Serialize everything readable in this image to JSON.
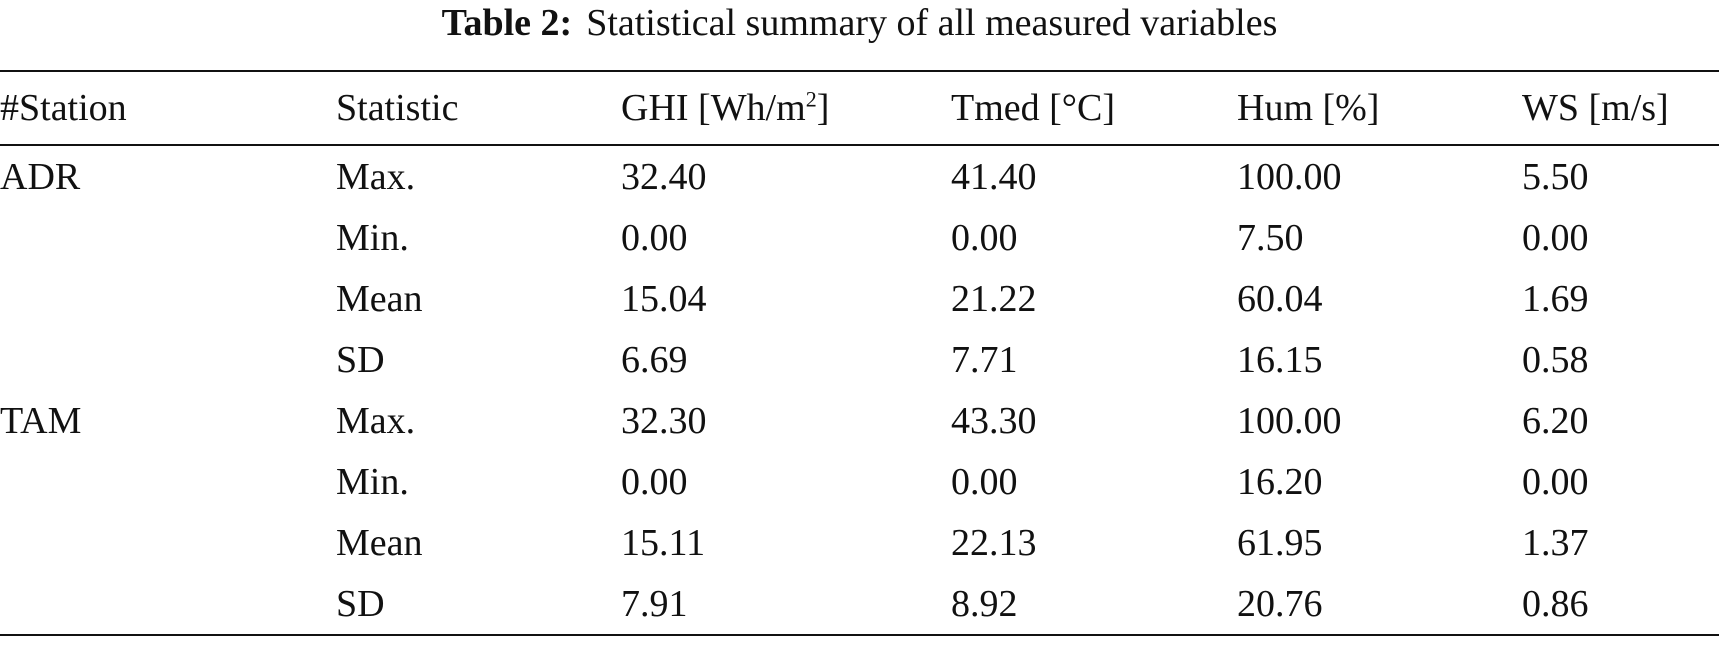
{
  "caption": {
    "label": "Table 2:",
    "text": "Statistical summary of all measured variables"
  },
  "table": {
    "headers": {
      "station": "#Station",
      "statistic": "Statistic",
      "ghi_pre": "GHI [Wh/m",
      "ghi_sup": "2",
      "ghi_post": "]",
      "tmed": "Tmed [°C]",
      "hum": "Hum [%]",
      "ws": "WS [m/s]"
    },
    "rows": [
      {
        "station": "ADR",
        "statistic": "Max.",
        "ghi": "32.40",
        "tmed": "41.40",
        "hum": "100.00",
        "ws": "5.50"
      },
      {
        "station": "",
        "statistic": "Min.",
        "ghi": "0.00",
        "tmed": "0.00",
        "hum": "7.50",
        "ws": "0.00"
      },
      {
        "station": "",
        "statistic": "Mean",
        "ghi": "15.04",
        "tmed": "21.22",
        "hum": "60.04",
        "ws": "1.69"
      },
      {
        "station": "",
        "statistic": "SD",
        "ghi": "6.69",
        "tmed": "7.71",
        "hum": "16.15",
        "ws": "0.58"
      },
      {
        "station": "TAM",
        "statistic": "Max.",
        "ghi": "32.30",
        "tmed": "43.30",
        "hum": "100.00",
        "ws": "6.20"
      },
      {
        "station": "",
        "statistic": "Min.",
        "ghi": "0.00",
        "tmed": "0.00",
        "hum": "16.20",
        "ws": "0.00"
      },
      {
        "station": "",
        "statistic": "Mean",
        "ghi": "15.11",
        "tmed": "22.13",
        "hum": "61.95",
        "ws": "1.37"
      },
      {
        "station": "",
        "statistic": "SD",
        "ghi": "7.91",
        "tmed": "8.92",
        "hum": "20.76",
        "ws": "0.86"
      }
    ]
  }
}
